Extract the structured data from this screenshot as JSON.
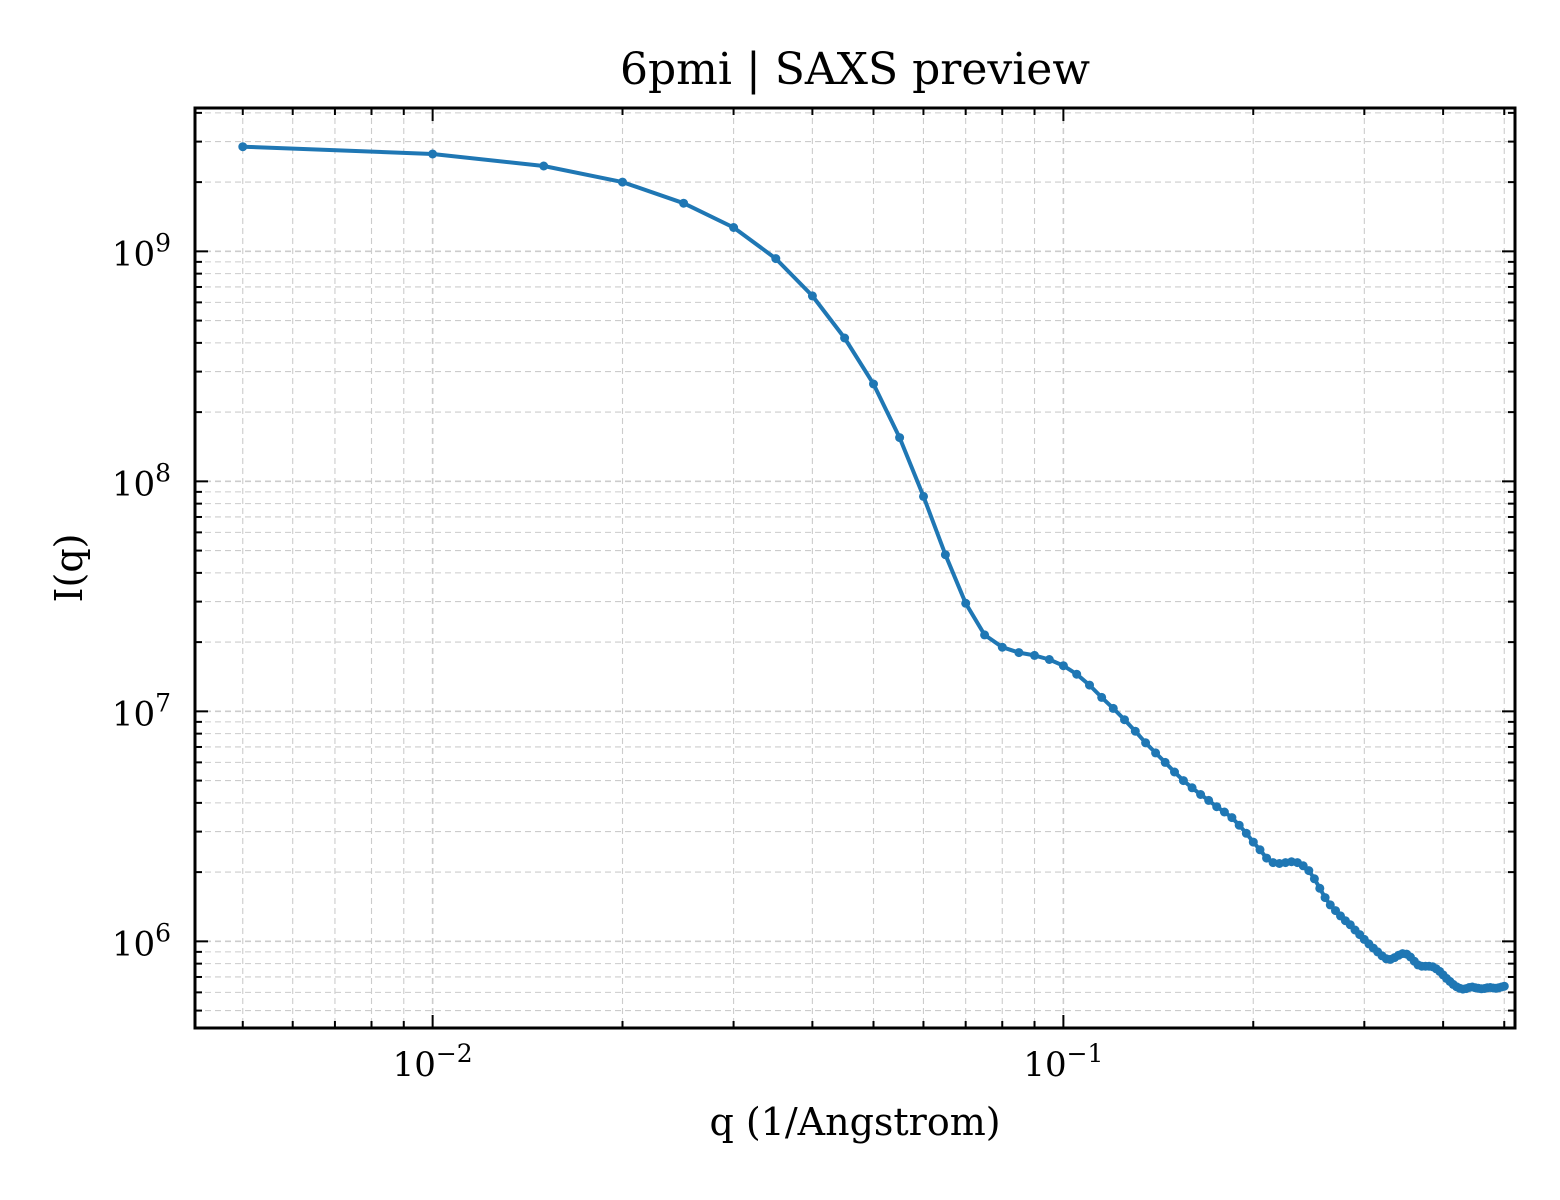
{
  "chart_data": {
    "type": "line",
    "title": "6pmi | SAXS preview",
    "xlabel": "q (1/Angstrom)",
    "ylabel": "I(q)",
    "x_scale": "log",
    "y_scale": "log",
    "xlim": [
      0.0042,
      0.52
    ],
    "ylim": [
      420000,
      4200000000
    ],
    "grid": true,
    "color": "#1f77b4",
    "x_ticks": [
      {
        "value": 0.01,
        "base": "10",
        "exp": "−2"
      },
      {
        "value": 0.1,
        "base": "10",
        "exp": "−1"
      }
    ],
    "y_ticks": [
      {
        "value": 1000000,
        "base": "10",
        "exp": "6"
      },
      {
        "value": 10000000,
        "base": "10",
        "exp": "7"
      },
      {
        "value": 100000000,
        "base": "10",
        "exp": "8"
      },
      {
        "value": 1000000000,
        "base": "10",
        "exp": "9"
      }
    ],
    "series": [
      {
        "x": [
          0.005,
          0.01,
          0.015,
          0.02,
          0.025,
          0.03,
          0.035,
          0.04,
          0.045,
          0.05,
          0.055,
          0.06,
          0.065,
          0.07,
          0.075,
          0.08,
          0.085,
          0.09,
          0.095,
          0.1,
          0.105,
          0.11,
          0.115,
          0.12,
          0.125,
          0.13,
          0.135,
          0.14,
          0.145,
          0.15,
          0.155,
          0.16,
          0.165,
          0.17,
          0.175,
          0.18,
          0.185,
          0.19,
          0.195,
          0.2,
          0.205,
          0.21,
          0.215,
          0.22,
          0.225,
          0.23,
          0.235,
          0.24,
          0.245,
          0.25,
          0.255,
          0.26,
          0.265,
          0.27,
          0.275,
          0.28,
          0.285,
          0.29,
          0.295,
          0.3,
          0.305,
          0.31,
          0.315,
          0.32,
          0.325,
          0.33,
          0.335,
          0.34,
          0.345,
          0.35,
          0.355,
          0.36,
          0.365,
          0.37,
          0.375,
          0.38,
          0.385,
          0.39,
          0.395,
          0.4,
          0.405,
          0.41,
          0.415,
          0.42,
          0.425,
          0.43,
          0.435,
          0.44,
          0.445,
          0.45,
          0.455,
          0.46,
          0.465,
          0.47,
          0.475,
          0.48,
          0.485,
          0.49,
          0.495,
          0.5
        ],
        "y": [
          2850000000,
          2650000000,
          2350000000,
          2000000000,
          1620000000,
          1270000000,
          930000000,
          640000000,
          420000000,
          265000000,
          155000000,
          86000000,
          48000000,
          29500000,
          21500000,
          19000000,
          18000000,
          17500000,
          16800000,
          15800000,
          14500000,
          13000000,
          11500000,
          10300000,
          9200000,
          8200000,
          7300000,
          6600000,
          6000000,
          5450000,
          5000000,
          4650000,
          4350000,
          4100000,
          3850000,
          3650000,
          3450000,
          3200000,
          2950000,
          2700000,
          2500000,
          2300000,
          2200000,
          2180000,
          2200000,
          2220000,
          2200000,
          2130000,
          2030000,
          1870000,
          1700000,
          1550000,
          1440000,
          1360000,
          1290000,
          1230000,
          1180000,
          1120000,
          1070000,
          1020000,
          975000,
          935000,
          900000,
          865000,
          840000,
          835000,
          850000,
          870000,
          885000,
          880000,
          855000,
          820000,
          790000,
          780000,
          780000,
          780000,
          775000,
          760000,
          740000,
          715000,
          690000,
          670000,
          650000,
          635000,
          625000,
          620000,
          623000,
          630000,
          633000,
          628000,
          625000,
          622000,
          624000,
          628000,
          630000,
          627000,
          625000,
          628000,
          633000,
          638000
        ]
      }
    ]
  }
}
